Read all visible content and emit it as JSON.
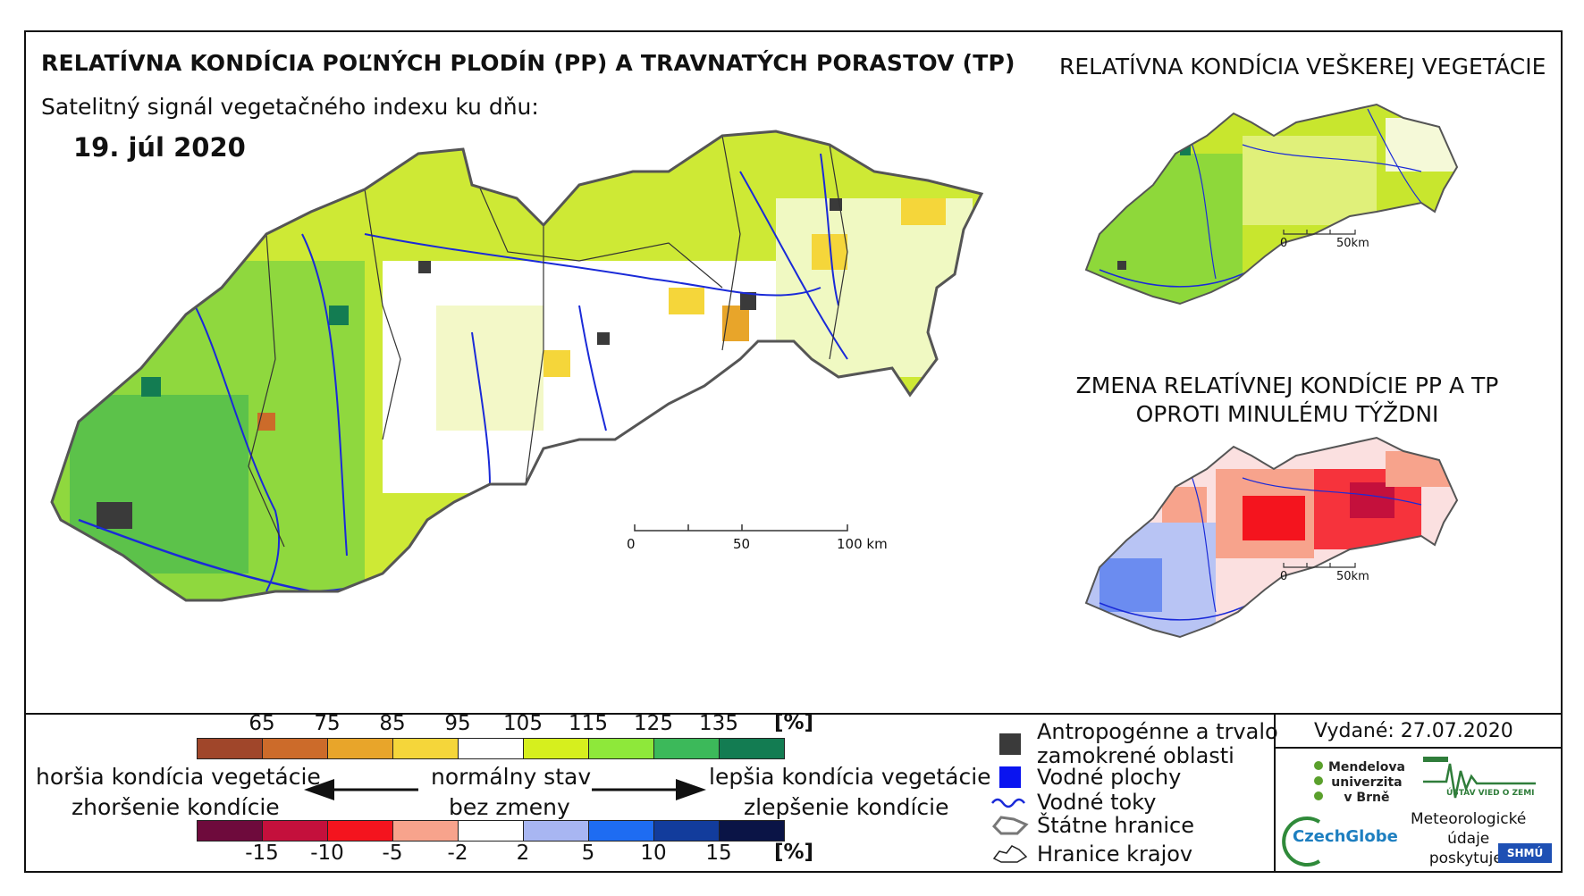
{
  "titles": {
    "main": "RELATÍVNA KONDÍCIA POĽNÝCH PLODÍN (PP) A TRAVNATÝCH PORASTOV (TP)",
    "subtitle": "Satelitný signál vegetačného indexu ku dňu:",
    "date": "19. júl 2020",
    "vegetation": "RELATÍVNA KONDÍCIA VEŠKEREJ VEGETÁCIE",
    "change_line1": "ZMENA RELATÍVNEJ KONDÍCIE PP A TP",
    "change_line2": "OPROTI MINULÉMU TÝŽDNI"
  },
  "scalebars": {
    "main": [
      "0",
      "50",
      "100 km"
    ],
    "small_top": [
      "0",
      "50km"
    ],
    "small_bottom": [
      "0",
      "50km"
    ]
  },
  "condition_scale": {
    "unit": "[%]",
    "ticks": [
      "65",
      "75",
      "85",
      "95",
      "105",
      "115",
      "125",
      "135"
    ],
    "colors": [
      "#a0462a",
      "#cc6b2a",
      "#e8a52a",
      "#f5d63a",
      "#ffffff",
      "#d6ef1e",
      "#8ee83a",
      "#3cb95a",
      "#137c52"
    ]
  },
  "change_scale": {
    "unit": "[%]",
    "ticks": [
      "-15",
      "-10",
      "-5",
      "-2",
      "2",
      "5",
      "10",
      "15"
    ],
    "colors": [
      "#6e0a3c",
      "#c4103c",
      "#f4141e",
      "#f7a38c",
      "#ffffff",
      "#a8b6f2",
      "#1e6cf2",
      "#123c9c",
      "#0a1446"
    ]
  },
  "legend_text": {
    "worse_condition": "horšia kondícia vegetácie",
    "worsened": "zhoršenie kondície",
    "normal": "normálny stav",
    "no_change": "bez zmeny",
    "better_condition": "lepšia kondícia vegetácie",
    "improved": "zlepšenie kondície"
  },
  "map_legend": [
    {
      "label": "Antropogénne a trvalo",
      "label2": "zamokrené oblasti",
      "icon": "dark-square-icon",
      "color": "#3a3a3a"
    },
    {
      "label": "Vodné plochy",
      "icon": "blue-square-icon",
      "color": "#0a14f0"
    },
    {
      "label": "Vodné toky",
      "icon": "river-line-icon",
      "color": "#1a2ad8"
    },
    {
      "label": "Štátne hranice",
      "icon": "state-border-icon",
      "color": "#777777"
    },
    {
      "label": "Hranice krajov",
      "icon": "region-border-icon",
      "color": "#222222"
    }
  ],
  "issued": "Vydané: 27.07.2020",
  "logos": {
    "mendel": [
      "Mendelova",
      "univerzita",
      "v Brně"
    ],
    "uvoz": "ÚSTAV VIED O ZEMI",
    "czechglobe": "CzechGlobe",
    "meteo": [
      "Meteorologické",
      "údaje",
      "poskytuje:"
    ],
    "shmu": "SHMÚ"
  }
}
